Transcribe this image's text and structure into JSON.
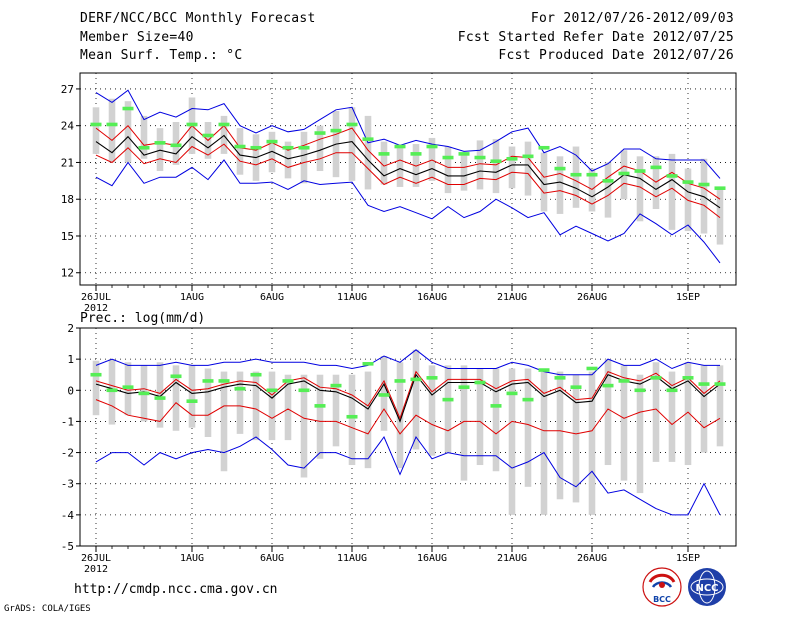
{
  "header": {
    "title": "DERF/NCC/BCC Monthly Forecast",
    "member_size": "Member Size=40",
    "variable_label": "Mean Surf. Temp.: °C",
    "forecast_range": "For 2012/07/26-2012/09/03",
    "fcst_started": "Fcst Started Refer Date 2012/07/25",
    "fcst_produced": "Fcst Produced Date 2012/07/26"
  },
  "footer": {
    "url": "http://cmdp.ncc.cma.gov.cn",
    "credit": "GrADS: COLA/IGES",
    "logo_left_text": "BCC",
    "logo_right_text": "NCC"
  },
  "colors": {
    "ensemble_bar": "#d2d2d2",
    "mean": "#000000",
    "std_band": "#e00000",
    "extremes": "#0000e0",
    "member_marker": "#55ee55",
    "grid": "#000000"
  },
  "chart_data": [
    {
      "type": "line",
      "title": "Mean Surf. Temp.: °C",
      "x_start_label": "26JUL",
      "x_year_label": "2012",
      "x_tick_labels": [
        "26JUL",
        "1AUG",
        "6AUG",
        "11AUG",
        "16AUG",
        "21AUG",
        "26AUG",
        "1SEP"
      ],
      "x_tick_day_index": [
        0,
        6,
        11,
        16,
        21,
        26,
        31,
        37
      ],
      "xlim": [
        -1,
        40
      ],
      "ylim": [
        11,
        28.3
      ],
      "yticks": [
        12,
        15,
        18,
        21,
        24,
        27
      ],
      "series": [
        {
          "name": "mean",
          "values": [
            22.7,
            21.8,
            23.1,
            21.6,
            22.0,
            21.7,
            23.1,
            22.2,
            23.2,
            21.6,
            21.4,
            21.9,
            21.3,
            21.6,
            22.0,
            22.5,
            22.7,
            21.2,
            19.9,
            20.5,
            20.0,
            20.5,
            19.9,
            19.9,
            20.3,
            20.2,
            20.8,
            20.8,
            19.2,
            19.4,
            18.9,
            18.2,
            19.0,
            20.0,
            19.7,
            18.8,
            19.6,
            18.6,
            18.2,
            17.3
          ]
        },
        {
          "name": "upper_band",
          "values": [
            23.8,
            22.8,
            24.0,
            22.4,
            22.6,
            22.4,
            24.0,
            22.8,
            24.0,
            22.2,
            22.0,
            22.6,
            22.0,
            22.4,
            22.9,
            23.3,
            23.8,
            22.0,
            20.7,
            21.2,
            20.7,
            21.2,
            20.6,
            20.6,
            20.9,
            20.8,
            21.5,
            21.4,
            19.8,
            20.1,
            19.5,
            18.8,
            19.8,
            20.7,
            20.3,
            19.4,
            20.2,
            19.3,
            18.9,
            18.0
          ]
        },
        {
          "name": "lower_band",
          "values": [
            21.6,
            21.0,
            22.2,
            20.9,
            21.3,
            21.0,
            22.3,
            21.6,
            22.5,
            21.1,
            20.8,
            21.3,
            20.6,
            21.0,
            21.3,
            21.8,
            21.8,
            20.5,
            19.2,
            19.8,
            19.3,
            19.8,
            19.2,
            19.2,
            19.7,
            19.6,
            20.2,
            20.1,
            18.5,
            18.7,
            18.3,
            17.6,
            18.3,
            19.3,
            19.0,
            18.2,
            18.9,
            17.9,
            17.5,
            16.5
          ]
        },
        {
          "name": "maximum",
          "values": [
            26.7,
            25.9,
            26.9,
            24.5,
            25.1,
            24.7,
            25.4,
            25.3,
            25.8,
            24.0,
            23.4,
            24.0,
            23.5,
            23.7,
            24.5,
            25.3,
            25.5,
            22.6,
            22.9,
            22.4,
            22.8,
            22.5,
            22.3,
            21.9,
            22.0,
            22.7,
            23.5,
            23.8,
            21.8,
            22.3,
            21.6,
            20.3,
            20.9,
            22.1,
            22.1,
            21.3,
            21.2,
            21.2,
            21.2,
            19.7
          ]
        },
        {
          "name": "minimum",
          "values": [
            19.8,
            19.1,
            21.0,
            19.3,
            19.8,
            19.8,
            20.6,
            19.6,
            21.2,
            19.3,
            19.3,
            19.4,
            18.8,
            19.5,
            19.2,
            19.3,
            19.4,
            17.5,
            17.0,
            17.4,
            16.9,
            16.4,
            17.4,
            16.5,
            17.0,
            18.0,
            17.3,
            16.5,
            16.9,
            15.1,
            15.8,
            15.2,
            14.6,
            15.2,
            16.8,
            16.0,
            15.1,
            15.9,
            14.5,
            12.8
          ]
        },
        {
          "name": "member",
          "values": [
            24.1,
            24.1,
            25.4,
            22.2,
            22.6,
            22.4,
            24.1,
            23.2,
            24.1,
            22.3,
            22.2,
            22.7,
            22.2,
            22.2,
            23.4,
            23.6,
            24.1,
            22.9,
            21.7,
            22.3,
            21.7,
            22.3,
            21.4,
            21.7,
            21.4,
            21.1,
            21.3,
            21.5,
            22.2,
            20.5,
            20.0,
            20.0,
            19.5,
            20.1,
            20.3,
            20.6,
            19.9,
            19.4,
            19.2,
            18.9
          ]
        }
      ],
      "box_top": [
        25.5,
        26.2,
        26.0,
        24.8,
        23.8,
        24.3,
        26.3,
        24.3,
        24.8,
        23.8,
        23.3,
        23.5,
        22.7,
        23.5,
        24.0,
        25.2,
        25.5,
        24.8,
        22.7,
        22.3,
        22.5,
        23.0,
        22.3,
        21.8,
        22.8,
        22.9,
        22.3,
        22.7,
        21.8,
        21.5,
        22.3,
        20.5,
        21.0,
        22.0,
        21.5,
        21.5,
        21.7,
        20.5,
        21.3,
        18.8
      ],
      "box_bottom": [
        21.7,
        21.0,
        21.0,
        21.3,
        20.3,
        20.8,
        21.7,
        21.3,
        21.7,
        20.0,
        19.5,
        20.2,
        19.7,
        19.3,
        20.3,
        19.8,
        19.5,
        18.8,
        19.2,
        19.0,
        19.0,
        19.5,
        18.5,
        18.7,
        18.8,
        18.5,
        18.9,
        18.3,
        17.0,
        16.8,
        17.3,
        17.0,
        16.5,
        18.0,
        16.2,
        17.2,
        15.5,
        15.4,
        15.2,
        14.3
      ]
    },
    {
      "type": "line",
      "title": "Prec.: log(mm/d)",
      "x_start_label": "26JUL",
      "x_year_label": "2012",
      "x_tick_labels": [
        "26JUL",
        "1AUG",
        "6AUG",
        "11AUG",
        "16AUG",
        "21AUG",
        "26AUG",
        "1SEP"
      ],
      "x_tick_day_index": [
        0,
        6,
        11,
        16,
        21,
        26,
        31,
        37
      ],
      "xlim": [
        -1,
        40
      ],
      "ylim": [
        -5,
        2
      ],
      "yticks": [
        -5,
        -4,
        -3,
        -2,
        -1,
        0,
        1,
        2
      ],
      "series": [
        {
          "name": "mean",
          "values": [
            0.2,
            0.05,
            -0.1,
            -0.05,
            -0.2,
            0.25,
            -0.1,
            -0.05,
            0.1,
            0.2,
            0.15,
            -0.25,
            0.2,
            0.3,
            0.0,
            -0.05,
            -0.25,
            -0.6,
            0.2,
            -1.0,
            0.5,
            -0.15,
            0.25,
            0.25,
            0.25,
            -0.05,
            0.2,
            0.25,
            -0.2,
            0.0,
            -0.4,
            -0.35,
            0.5,
            0.3,
            0.2,
            0.45,
            0.05,
            0.3,
            -0.2,
            0.2
          ]
        },
        {
          "name": "upper_band",
          "values": [
            0.3,
            0.15,
            0.0,
            0.05,
            -0.1,
            0.35,
            0.0,
            0.05,
            0.2,
            0.3,
            0.25,
            -0.15,
            0.3,
            0.4,
            0.1,
            0.05,
            -0.15,
            -0.5,
            0.3,
            -0.9,
            0.6,
            -0.05,
            0.35,
            0.35,
            0.35,
            0.05,
            0.3,
            0.35,
            -0.1,
            0.1,
            -0.3,
            -0.25,
            0.6,
            0.4,
            0.3,
            0.55,
            0.15,
            0.4,
            -0.1,
            0.3
          ]
        },
        {
          "name": "lower_band",
          "values": [
            -0.3,
            -0.5,
            -0.8,
            -0.9,
            -1.0,
            -0.4,
            -0.8,
            -0.8,
            -0.5,
            -0.5,
            -0.6,
            -0.9,
            -0.6,
            -0.9,
            -1.0,
            -1.0,
            -1.2,
            -1.4,
            -0.6,
            -1.4,
            -0.8,
            -1.1,
            -1.3,
            -1.0,
            -1.0,
            -1.4,
            -1.0,
            -1.1,
            -1.3,
            -1.3,
            -1.4,
            -1.3,
            -0.6,
            -0.9,
            -0.7,
            -0.6,
            -1.1,
            -0.7,
            -1.2,
            -0.9
          ]
        },
        {
          "name": "maximum",
          "values": [
            0.8,
            1.0,
            0.8,
            0.8,
            0.8,
            0.9,
            0.8,
            0.8,
            0.9,
            0.9,
            1.0,
            0.9,
            0.9,
            0.9,
            0.8,
            0.8,
            0.7,
            0.8,
            1.1,
            0.9,
            1.3,
            0.9,
            0.7,
            0.7,
            0.7,
            0.7,
            0.9,
            0.8,
            0.6,
            0.5,
            0.5,
            0.5,
            1.0,
            0.8,
            0.8,
            1.0,
            0.7,
            0.9,
            0.8,
            0.8
          ]
        },
        {
          "name": "minimum",
          "values": [
            -2.3,
            -2.0,
            -2.0,
            -2.4,
            -2.0,
            -2.2,
            -2.0,
            -1.9,
            -2.0,
            -1.8,
            -1.5,
            -1.9,
            -2.4,
            -2.5,
            -2.0,
            -2.0,
            -2.2,
            -2.2,
            -1.5,
            -2.7,
            -1.5,
            -2.2,
            -2.0,
            -2.1,
            -2.1,
            -2.1,
            -2.5,
            -2.3,
            -2.0,
            -2.8,
            -3.1,
            -2.6,
            -3.3,
            -3.2,
            -3.5,
            -3.8,
            -4.0,
            -4.0,
            -3.0,
            -4.0
          ]
        },
        {
          "name": "member",
          "values": [
            0.5,
            0.0,
            0.1,
            -0.1,
            -0.25,
            0.45,
            -0.35,
            0.3,
            0.3,
            0.05,
            0.5,
            0.0,
            0.3,
            0.0,
            -0.5,
            0.15,
            -0.85,
            0.85,
            -0.15,
            0.3,
            0.35,
            0.4,
            -0.3,
            0.1,
            0.25,
            -0.5,
            -0.1,
            -0.3,
            0.65,
            0.4,
            0.1,
            0.7,
            0.15,
            0.3,
            0.0,
            0.4,
            0.0,
            0.4,
            0.2,
            0.2
          ]
        }
      ],
      "box_top": [
        0.95,
        1.0,
        0.9,
        0.8,
        0.9,
        0.8,
        0.8,
        0.7,
        0.6,
        0.6,
        0.6,
        0.6,
        0.5,
        0.5,
        0.5,
        0.5,
        0.5,
        0.6,
        1.1,
        0.9,
        1.3,
        0.8,
        0.8,
        0.8,
        0.7,
        0.7,
        0.7,
        0.7,
        0.6,
        0.6,
        0.5,
        0.6,
        1.0,
        0.8,
        0.5,
        0.9,
        0.6,
        0.9,
        0.8,
        0.8
      ],
      "box_bottom": [
        -0.8,
        -1.1,
        -0.8,
        -1.0,
        -1.2,
        -1.3,
        -1.2,
        -1.5,
        -2.6,
        -1.4,
        -1.6,
        -1.6,
        -1.6,
        -2.8,
        -2.2,
        -1.8,
        -2.4,
        -2.5,
        -1.3,
        -2.5,
        -1.9,
        -2.1,
        -2.0,
        -2.9,
        -2.4,
        -2.6,
        -4.0,
        -3.1,
        -4.0,
        -3.5,
        -3.6,
        -4.0,
        -2.4,
        -2.9,
        -3.3,
        -2.3,
        -2.3,
        -2.4,
        -2.0,
        -1.8
      ]
    }
  ]
}
